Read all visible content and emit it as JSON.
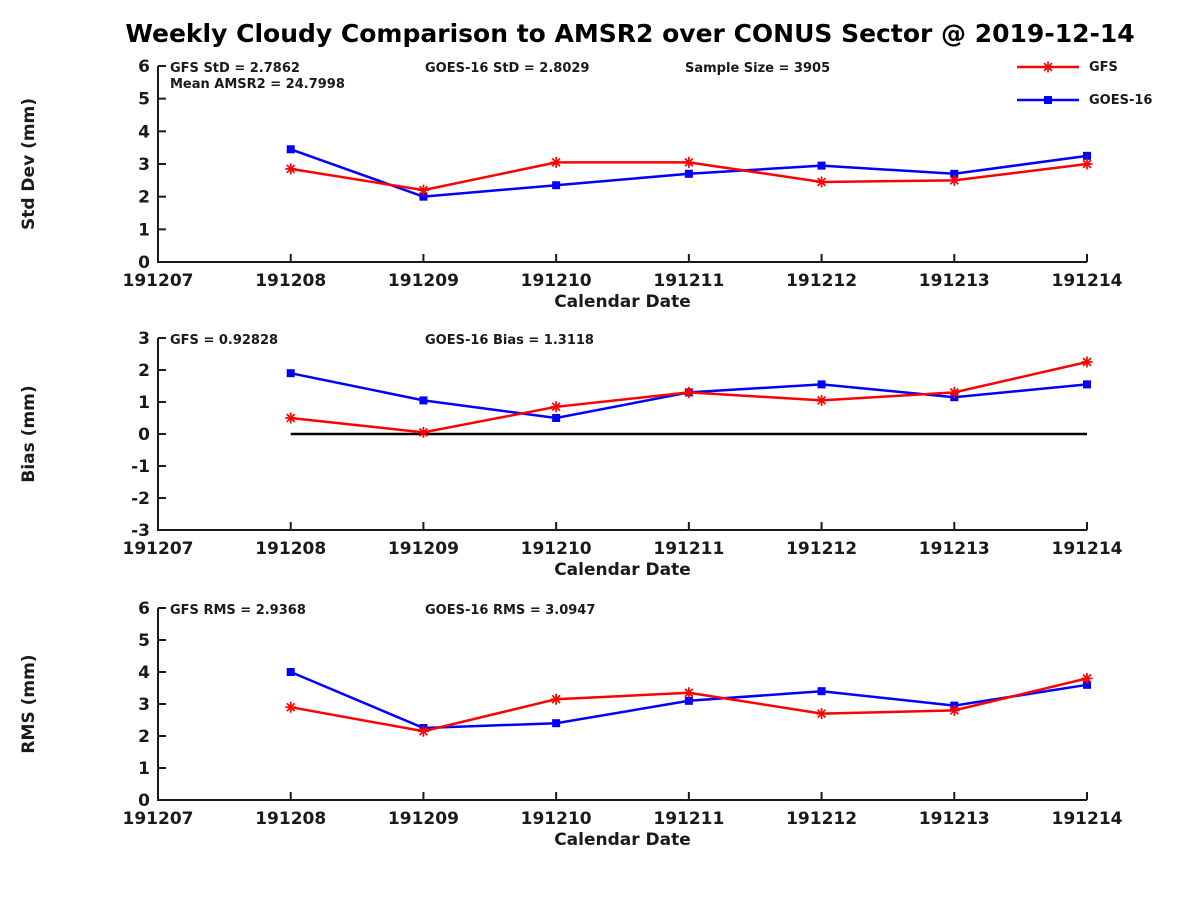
{
  "title": "Weekly Cloudy Comparison to AMSR2 over CONUS Sector @ 2019-12-14",
  "colors": {
    "gfs": "#ff0000",
    "goes16": "#0000ff",
    "axis": "#1a1a1a",
    "text": "#1a1a1a",
    "zero_line": "#000000",
    "background": "#ffffff"
  },
  "legend": {
    "position": "top-right",
    "items": [
      {
        "label": "GFS",
        "color": "#ff0000",
        "marker": "asterisk"
      },
      {
        "label": "GOES-16",
        "color": "#0000ff",
        "marker": "square"
      }
    ]
  },
  "chart_data": [
    {
      "type": "line",
      "name": "std-dev",
      "ylabel": "Std Dev (mm)",
      "xlabel": "Calendar Date",
      "ylim": [
        0,
        6
      ],
      "yticks": [
        0,
        1,
        2,
        3,
        4,
        5,
        6
      ],
      "xticks": [
        "191207",
        "191208",
        "191209",
        "191210",
        "191211",
        "191212",
        "191213",
        "191214"
      ],
      "x": [
        "191208",
        "191209",
        "191210",
        "191211",
        "191212",
        "191213",
        "191214"
      ],
      "grid": false,
      "zero_line": false,
      "annotations": [
        {
          "text": "GFS StD = 2.7862",
          "col": 0,
          "row": 0
        },
        {
          "text": "GOES-16 StD = 2.8029",
          "col": 1,
          "row": 0
        },
        {
          "text": "Sample Size = 3905",
          "col": 2,
          "row": 0
        },
        {
          "text": "Mean AMSR2 = 24.7998",
          "col": 0,
          "row": 1
        }
      ],
      "series": [
        {
          "name": "GFS",
          "color": "#ff0000",
          "marker": "asterisk",
          "values": [
            2.85,
            2.2,
            3.05,
            3.05,
            2.45,
            2.5,
            3.0
          ]
        },
        {
          "name": "GOES-16",
          "color": "#0000ff",
          "marker": "square",
          "values": [
            3.45,
            2.0,
            2.35,
            2.7,
            2.95,
            2.7,
            3.25
          ]
        }
      ]
    },
    {
      "type": "line",
      "name": "bias",
      "ylabel": "Bias (mm)",
      "xlabel": "Calendar Date",
      "ylim": [
        -3,
        3
      ],
      "yticks": [
        -3,
        -2,
        -1,
        0,
        1,
        2,
        3
      ],
      "xticks": [
        "191207",
        "191208",
        "191209",
        "191210",
        "191211",
        "191212",
        "191213",
        "191214"
      ],
      "x": [
        "191208",
        "191209",
        "191210",
        "191211",
        "191212",
        "191213",
        "191214"
      ],
      "grid": false,
      "zero_line": true,
      "annotations": [
        {
          "text": "GFS = 0.92828",
          "col": 0,
          "row": 0
        },
        {
          "text": "GOES-16 Bias  = 1.3118",
          "col": 1,
          "row": 0
        }
      ],
      "series": [
        {
          "name": "GFS",
          "color": "#ff0000",
          "marker": "asterisk",
          "values": [
            0.5,
            0.05,
            0.85,
            1.3,
            1.05,
            1.3,
            2.25
          ]
        },
        {
          "name": "GOES-16",
          "color": "#0000ff",
          "marker": "square",
          "values": [
            1.9,
            1.05,
            0.5,
            1.3,
            1.55,
            1.15,
            1.55
          ]
        }
      ]
    },
    {
      "type": "line",
      "name": "rms",
      "ylabel": "RMS (mm)",
      "xlabel": "Calendar Date",
      "ylim": [
        0,
        6
      ],
      "yticks": [
        0,
        1,
        2,
        3,
        4,
        5,
        6
      ],
      "xticks": [
        "191207",
        "191208",
        "191209",
        "191210",
        "191211",
        "191212",
        "191213",
        "191214"
      ],
      "x": [
        "191208",
        "191209",
        "191210",
        "191211",
        "191212",
        "191213",
        "191214"
      ],
      "grid": false,
      "zero_line": false,
      "annotations": [
        {
          "text": "GFS RMS = 2.9368",
          "col": 0,
          "row": 0
        },
        {
          "text": "GOES-16 RMS = 3.0947",
          "col": 1,
          "row": 0
        }
      ],
      "series": [
        {
          "name": "GFS",
          "color": "#ff0000",
          "marker": "asterisk",
          "values": [
            2.9,
            2.15,
            3.15,
            3.35,
            2.7,
            2.8,
            3.8
          ]
        },
        {
          "name": "GOES-16",
          "color": "#0000ff",
          "marker": "square",
          "values": [
            4.0,
            2.25,
            2.4,
            3.1,
            3.4,
            2.95,
            3.6
          ]
        }
      ]
    }
  ]
}
